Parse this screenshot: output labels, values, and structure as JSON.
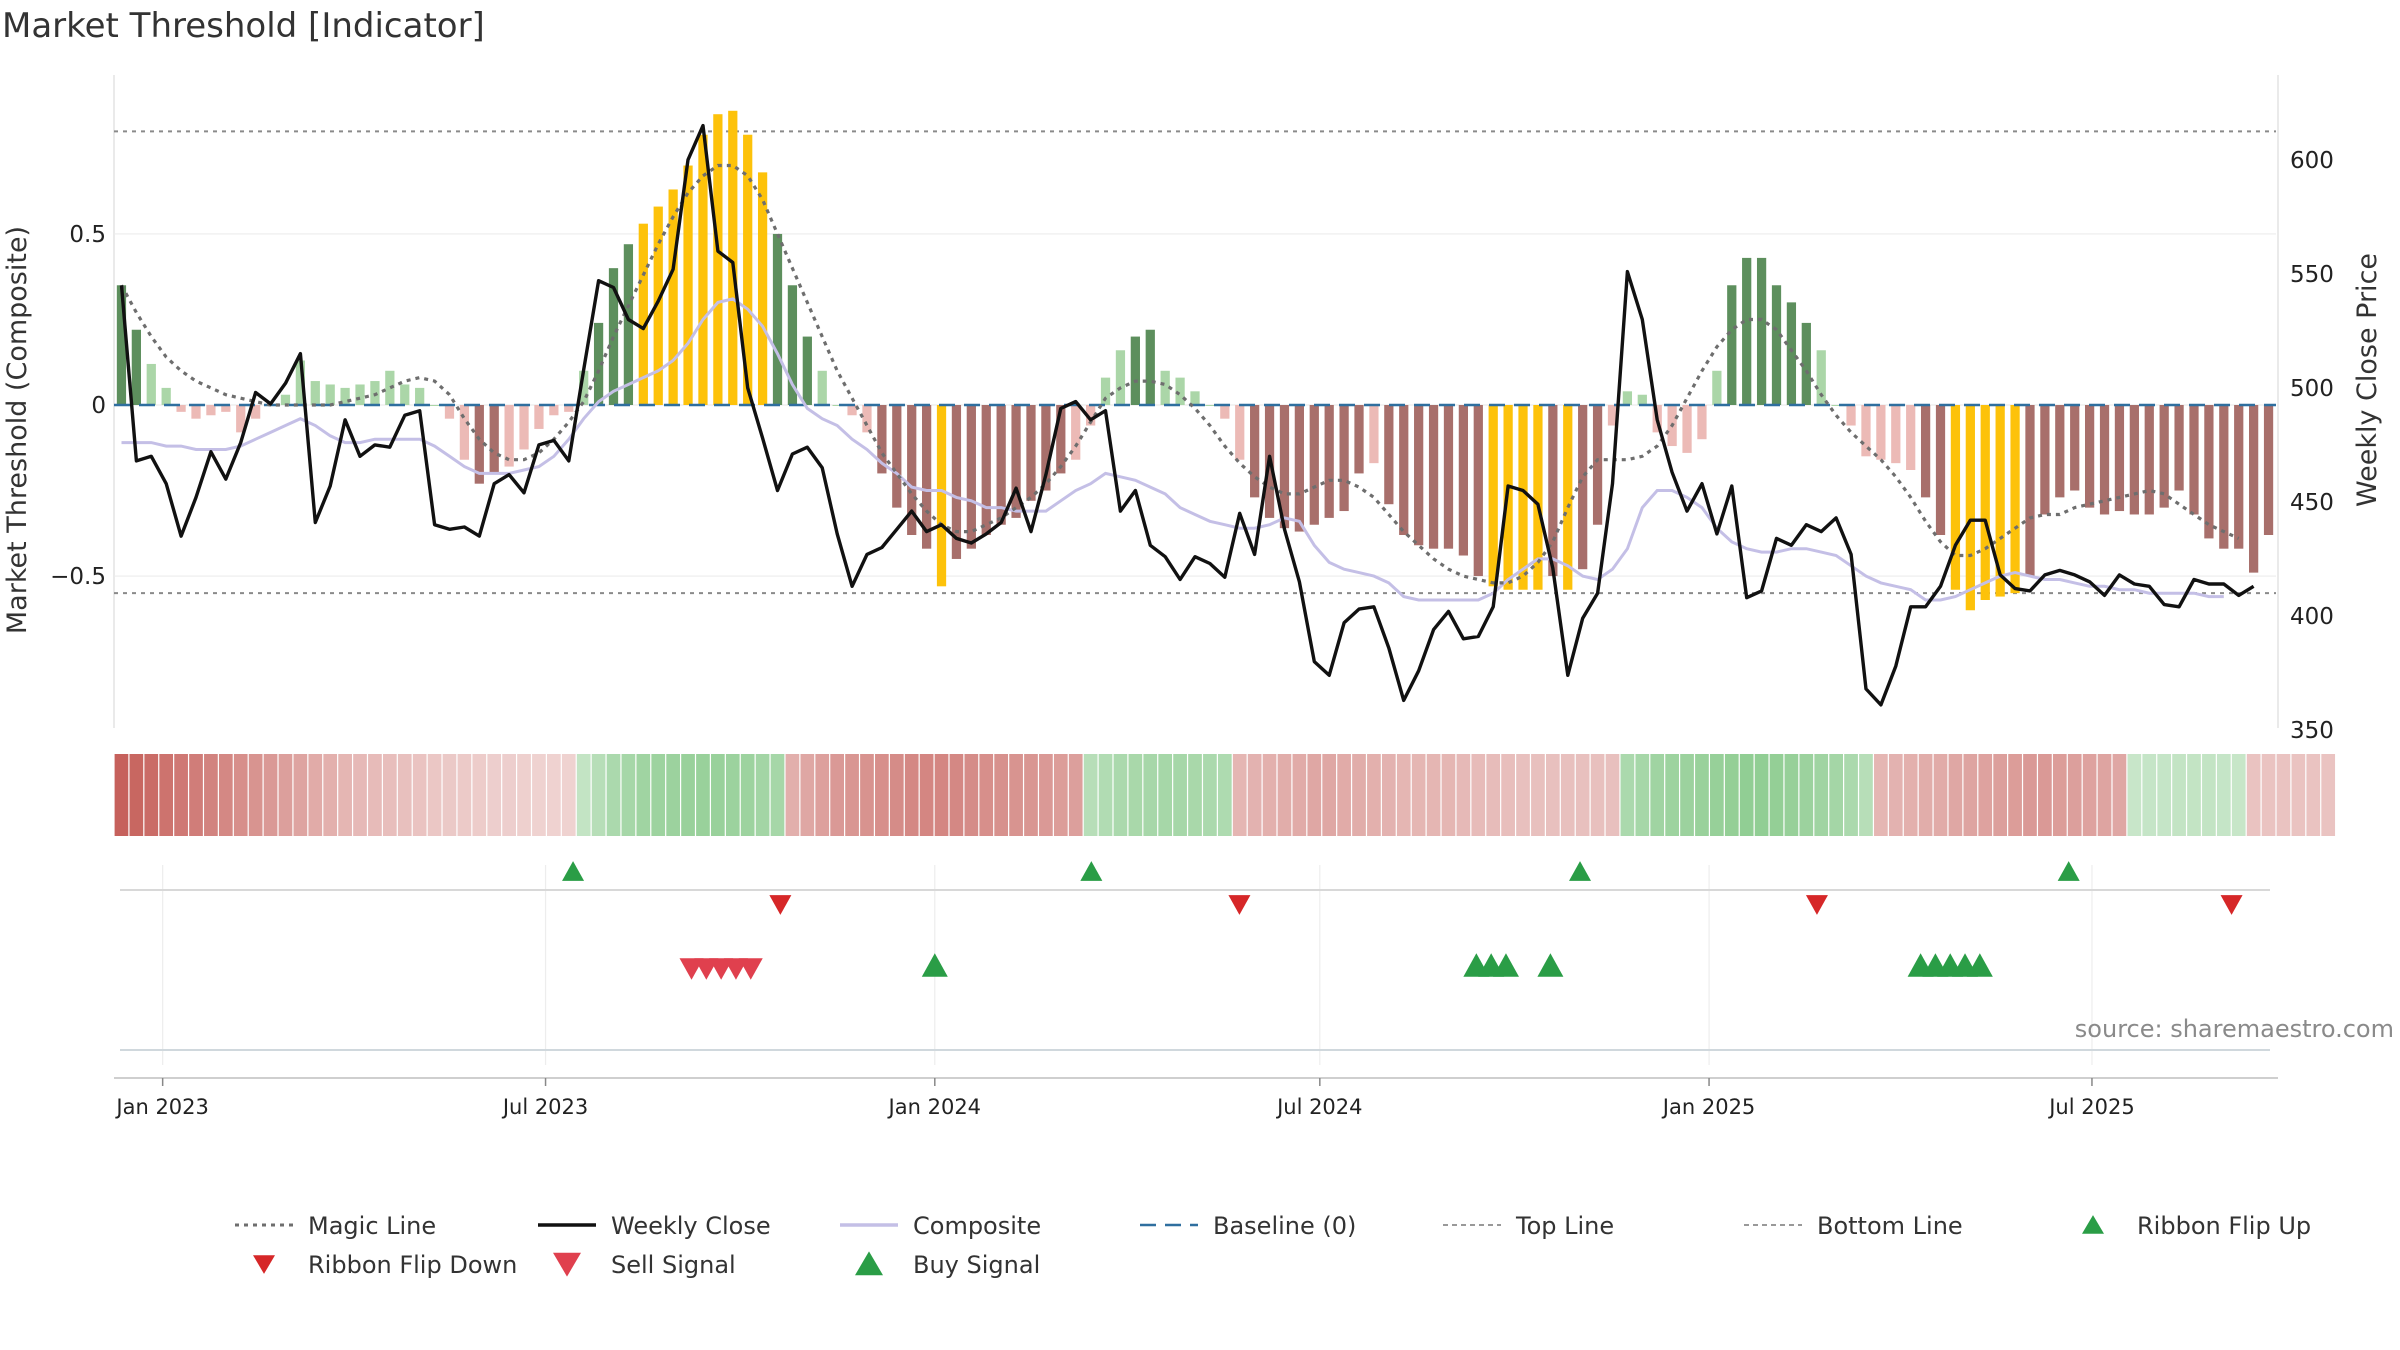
{
  "title": "Market Threshold [Indicator]",
  "source": "source: sharemaestro.com",
  "chart_data": {
    "type": "bar",
    "left_axis": {
      "label": "Market Threshold (Composite)",
      "ticks": [
        0.5,
        0,
        -0.5
      ],
      "tick_labels": [
        "0.5",
        "0",
        "−0.5"
      ],
      "range": [
        -0.95,
        0.95
      ]
    },
    "right_axis": {
      "label": "Weekly Close Price",
      "ticks": [
        600,
        550,
        500,
        450,
        400,
        350
      ],
      "tick_labels": [
        "600",
        "550",
        "500",
        "450",
        "400",
        "350"
      ],
      "range": [
        350,
        635
      ]
    },
    "x_axis": {
      "start": "2022-12-09",
      "end": "2025-09-26",
      "ticks": [
        "2023-01-01",
        "2023-07-01",
        "2024-01-01",
        "2024-07-01",
        "2025-01-01",
        "2025-07-01"
      ],
      "tick_labels": [
        "Jan 2023",
        "Jul 2023",
        "Jan 2024",
        "Jul 2024",
        "Jan 2025",
        "Jul 2025"
      ]
    },
    "top_line": 0.8,
    "bottom_line": -0.55,
    "baseline": 0,
    "grid": true,
    "composite_bars": [
      0.35,
      0.22,
      0.12,
      0.05,
      -0.02,
      -0.04,
      -0.03,
      -0.02,
      -0.08,
      -0.04,
      0.0,
      0.03,
      0.13,
      0.07,
      0.06,
      0.05,
      0.06,
      0.07,
      0.1,
      0.06,
      0.05,
      0.0,
      -0.04,
      -0.16,
      -0.23,
      -0.2,
      -0.18,
      -0.13,
      -0.07,
      -0.03,
      -0.02,
      0.1,
      0.24,
      0.4,
      0.47,
      0.53,
      0.58,
      0.63,
      0.7,
      0.79,
      0.85,
      0.86,
      0.79,
      0.68,
      0.5,
      0.35,
      0.2,
      0.1,
      0.0,
      -0.03,
      -0.08,
      -0.2,
      -0.3,
      -0.38,
      -0.42,
      -0.53,
      -0.45,
      -0.42,
      -0.38,
      -0.35,
      -0.33,
      -0.28,
      -0.25,
      -0.2,
      -0.16,
      -0.06,
      0.08,
      0.16,
      0.2,
      0.22,
      0.1,
      0.08,
      0.04,
      0.0,
      -0.04,
      -0.16,
      -0.27,
      -0.33,
      -0.36,
      -0.37,
      -0.35,
      -0.33,
      -0.31,
      -0.2,
      -0.17,
      -0.29,
      -0.38,
      -0.41,
      -0.42,
      -0.42,
      -0.44,
      -0.5,
      -0.53,
      -0.54,
      -0.54,
      -0.54,
      -0.5,
      -0.54,
      -0.48,
      -0.35,
      -0.06,
      0.04,
      0.03,
      -0.08,
      -0.12,
      -0.14,
      -0.1,
      0.1,
      0.35,
      0.43,
      0.43,
      0.35,
      0.3,
      0.24,
      0.16,
      0.0,
      -0.06,
      -0.15,
      -0.16,
      -0.17,
      -0.19,
      -0.27,
      -0.38,
      -0.54,
      -0.6,
      -0.57,
      -0.56,
      -0.55,
      -0.5,
      -0.32,
      -0.27,
      -0.25,
      -0.3,
      -0.32,
      -0.31,
      -0.32,
      -0.32,
      -0.3,
      -0.25,
      -0.32,
      -0.39,
      -0.42,
      -0.42,
      -0.49,
      -0.38
    ],
    "magic_line": [
      0.35,
      0.27,
      0.2,
      0.14,
      0.1,
      0.07,
      0.05,
      0.03,
      0.02,
      0.01,
      0.0,
      0.0,
      0.0,
      0.0,
      0.0,
      0.01,
      0.02,
      0.03,
      0.05,
      0.07,
      0.08,
      0.07,
      0.03,
      -0.04,
      -0.1,
      -0.14,
      -0.16,
      -0.16,
      -0.14,
      -0.1,
      -0.05,
      0.01,
      0.1,
      0.2,
      0.29,
      0.38,
      0.47,
      0.55,
      0.62,
      0.67,
      0.7,
      0.7,
      0.67,
      0.6,
      0.5,
      0.4,
      0.3,
      0.2,
      0.1,
      0.02,
      -0.06,
      -0.14,
      -0.2,
      -0.26,
      -0.31,
      -0.35,
      -0.37,
      -0.37,
      -0.35,
      -0.33,
      -0.3,
      -0.27,
      -0.23,
      -0.18,
      -0.12,
      -0.05,
      0.02,
      0.05,
      0.07,
      0.07,
      0.06,
      0.03,
      -0.01,
      -0.06,
      -0.12,
      -0.17,
      -0.21,
      -0.24,
      -0.26,
      -0.26,
      -0.24,
      -0.22,
      -0.22,
      -0.24,
      -0.27,
      -0.32,
      -0.37,
      -0.41,
      -0.45,
      -0.48,
      -0.5,
      -0.51,
      -0.52,
      -0.52,
      -0.5,
      -0.46,
      -0.4,
      -0.3,
      -0.21,
      -0.16,
      -0.16,
      -0.16,
      -0.15,
      -0.12,
      -0.06,
      0.02,
      0.1,
      0.17,
      0.22,
      0.25,
      0.25,
      0.22,
      0.16,
      0.1,
      0.03,
      -0.03,
      -0.08,
      -0.12,
      -0.16,
      -0.21,
      -0.27,
      -0.34,
      -0.4,
      -0.44,
      -0.44,
      -0.42,
      -0.39,
      -0.36,
      -0.33,
      -0.32,
      -0.32,
      -0.3,
      -0.29,
      -0.28,
      -0.27,
      -0.26,
      -0.25,
      -0.26,
      -0.29,
      -0.32,
      -0.35,
      -0.37,
      -0.39
    ],
    "composite_line": [
      -0.11,
      -0.11,
      -0.11,
      -0.12,
      -0.12,
      -0.13,
      -0.13,
      -0.13,
      -0.12,
      -0.1,
      -0.08,
      -0.06,
      -0.04,
      -0.06,
      -0.09,
      -0.11,
      -0.11,
      -0.1,
      -0.1,
      -0.1,
      -0.1,
      -0.12,
      -0.15,
      -0.18,
      -0.2,
      -0.2,
      -0.2,
      -0.19,
      -0.18,
      -0.15,
      -0.1,
      -0.04,
      0.01,
      0.04,
      0.06,
      0.08,
      0.1,
      0.13,
      0.18,
      0.25,
      0.3,
      0.31,
      0.28,
      0.23,
      0.15,
      0.06,
      -0.01,
      -0.04,
      -0.06,
      -0.1,
      -0.13,
      -0.17,
      -0.2,
      -0.24,
      -0.25,
      -0.25,
      -0.27,
      -0.28,
      -0.3,
      -0.3,
      -0.31,
      -0.31,
      -0.31,
      -0.28,
      -0.25,
      -0.23,
      -0.2,
      -0.21,
      -0.22,
      -0.24,
      -0.26,
      -0.3,
      -0.32,
      -0.34,
      -0.35,
      -0.36,
      -0.36,
      -0.35,
      -0.33,
      -0.34,
      -0.41,
      -0.46,
      -0.48,
      -0.49,
      -0.5,
      -0.52,
      -0.56,
      -0.57,
      -0.57,
      -0.57,
      -0.57,
      -0.57,
      -0.55,
      -0.51,
      -0.48,
      -0.45,
      -0.45,
      -0.47,
      -0.5,
      -0.51,
      -0.48,
      -0.42,
      -0.3,
      -0.25,
      -0.25,
      -0.27,
      -0.3,
      -0.36,
      -0.4,
      -0.42,
      -0.43,
      -0.43,
      -0.42,
      -0.42,
      -0.43,
      -0.44,
      -0.47,
      -0.5,
      -0.52,
      -0.53,
      -0.54,
      -0.57,
      -0.57,
      -0.56,
      -0.54,
      -0.52,
      -0.5,
      -0.49,
      -0.5,
      -0.51,
      -0.51,
      -0.52,
      -0.53,
      -0.53,
      -0.54,
      -0.54,
      -0.55,
      -0.55,
      -0.55,
      -0.55,
      -0.56,
      -0.56
    ],
    "weekly_close": [
      545,
      468,
      470,
      458,
      435,
      452,
      472,
      460,
      476,
      498,
      493,
      502,
      515,
      441,
      457,
      486,
      470,
      475,
      474,
      488,
      490,
      440,
      438,
      439,
      435,
      458,
      462,
      454,
      475,
      477,
      468,
      508,
      547,
      544,
      530,
      526,
      538,
      552,
      600,
      615,
      560,
      555,
      500,
      478,
      455,
      471,
      474,
      465,
      436,
      413,
      427,
      430,
      438,
      446,
      437,
      440,
      434,
      432,
      436,
      441,
      456,
      437,
      462,
      491,
      494,
      486,
      490,
      446,
      455,
      431,
      426,
      416,
      426,
      423,
      417,
      445,
      427,
      470,
      438,
      415,
      380,
      374,
      397,
      403,
      404,
      386,
      363,
      376,
      394,
      402,
      390,
      391,
      404,
      457,
      455,
      449,
      421,
      374,
      399,
      410,
      458,
      551,
      530,
      486,
      463,
      446,
      458,
      436,
      457,
      408,
      411,
      434,
      431,
      440,
      437,
      443,
      427,
      368,
      361,
      378,
      404,
      404,
      413,
      431,
      442,
      442,
      418,
      412,
      411,
      418,
      420,
      418,
      415,
      409,
      418,
      414,
      413,
      405,
      404,
      416,
      414,
      414,
      409,
      413
    ],
    "ribbon": [
      -0.9,
      -0.86,
      -0.82,
      -0.78,
      -0.74,
      -0.7,
      -0.66,
      -0.62,
      -0.58,
      -0.54,
      -0.5,
      -0.46,
      -0.42,
      -0.38,
      -0.34,
      -0.3,
      -0.28,
      -0.26,
      -0.24,
      -0.22,
      -0.2,
      -0.18,
      -0.16,
      -0.15,
      -0.14,
      -0.13,
      -0.12,
      -0.11,
      -0.1,
      -0.1,
      -0.1,
      0.3,
      0.4,
      0.5,
      0.55,
      0.6,
      0.62,
      0.64,
      0.66,
      0.66,
      0.66,
      0.64,
      0.62,
      0.58,
      0.55,
      -0.35,
      -0.4,
      -0.45,
      -0.5,
      -0.52,
      -0.55,
      -0.58,
      -0.6,
      -0.62,
      -0.64,
      -0.64,
      -0.62,
      -0.6,
      -0.58,
      -0.56,
      -0.54,
      -0.52,
      -0.5,
      -0.48,
      -0.46,
      0.4,
      0.45,
      0.5,
      0.52,
      0.54,
      0.55,
      0.55,
      0.52,
      0.5,
      0.48,
      -0.3,
      -0.32,
      -0.34,
      -0.36,
      -0.38,
      -0.4,
      -0.4,
      -0.38,
      -0.36,
      -0.34,
      -0.32,
      -0.3,
      -0.3,
      -0.3,
      -0.3,
      -0.28,
      -0.26,
      -0.25,
      -0.24,
      -0.23,
      -0.22,
      -0.22,
      -0.22,
      -0.22,
      -0.22,
      -0.22,
      0.5,
      0.55,
      0.6,
      0.62,
      0.64,
      0.66,
      0.68,
      0.7,
      0.72,
      0.72,
      0.7,
      0.68,
      0.64,
      0.6,
      0.56,
      0.5,
      0.4,
      -0.3,
      -0.32,
      -0.34,
      -0.36,
      -0.38,
      -0.4,
      -0.42,
      -0.44,
      -0.46,
      -0.48,
      -0.5,
      -0.5,
      -0.48,
      -0.46,
      -0.44,
      -0.42,
      -0.4,
      0.25,
      0.27,
      0.28,
      0.3,
      0.3,
      0.3,
      0.28,
      0.26,
      -0.2,
      -0.2,
      -0.2,
      -0.2,
      -0.2,
      -0.2
    ],
    "ribbon_flip_up": [
      "2023-07-14",
      "2024-03-15",
      "2024-11-01",
      "2025-06-20"
    ],
    "ribbon_flip_down": [
      "2023-10-20",
      "2024-05-24",
      "2025-02-21",
      "2025-09-05"
    ],
    "sell_signal": [
      "2023-09-08",
      "2023-09-15",
      "2023-09-22",
      "2023-09-29",
      "2023-10-06"
    ],
    "buy_signal": [
      "2024-01-01",
      "2024-09-13",
      "2024-09-20",
      "2024-09-27",
      "2024-10-18",
      "2025-04-11",
      "2025-04-18",
      "2025-04-25",
      "2025-05-02",
      "2025-05-09"
    ],
    "legend": {
      "placement": "bottom",
      "entries": [
        {
          "label": "Magic Line",
          "kind": "dotted",
          "color": "#6e6e6e"
        },
        {
          "label": "Weekly Close",
          "kind": "solid",
          "color": "#111111"
        },
        {
          "label": "Composite",
          "kind": "solid",
          "color": "#c4bfe6"
        },
        {
          "label": "Baseline (0)",
          "kind": "dashed",
          "color": "#2f6f9f"
        },
        {
          "label": "Top Line",
          "kind": "dashed-thin",
          "color": "#999999"
        },
        {
          "label": "Bottom Line",
          "kind": "dashed-thin",
          "color": "#999999"
        },
        {
          "label": "Ribbon Flip Up",
          "kind": "tri-up",
          "color": "#2a9d46"
        },
        {
          "label": "Ribbon Flip Down",
          "kind": "tri-down",
          "color": "#d62728"
        },
        {
          "label": "Sell Signal",
          "kind": "tri-down",
          "color": "#e0404e"
        },
        {
          "label": "Buy Signal",
          "kind": "tri-up",
          "color": "#2a9d46"
        }
      ]
    },
    "colors": {
      "bar_strong_pos": "#5d8f5d",
      "bar_weak_pos": "#abd6a8",
      "bar_strong_neg": "#a86f6b",
      "bar_weak_neg": "#ecbab6",
      "bar_extreme": "#fdc20a",
      "weekly_close": "#111111",
      "composite": "#c4bfe6",
      "magic": "#6e6e6e",
      "baseline": "#2f6f9f",
      "ribbon_pos": "#6fbe72",
      "ribbon_neg": "#c0504a",
      "flip_up": "#2a9d46",
      "flip_down": "#d62728",
      "sell": "#e0404e",
      "buy": "#2a9d46"
    }
  }
}
